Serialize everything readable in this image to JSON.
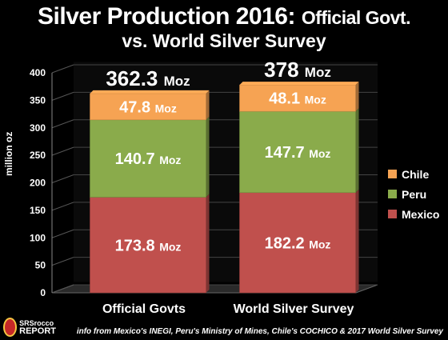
{
  "title": {
    "main": "Silver Production 2016:",
    "suffix": "Official Govt.",
    "line2": "vs. World Silver Survey"
  },
  "logo": {
    "badge": "SRSrocco",
    "line1": "SRSrocco",
    "line2": "REPORT"
  },
  "source": "info from Mexico's INEGI, Peru's Ministry of Mines, Chile's COCHICO & 2017 World Silver Survey",
  "chart_data": {
    "type": "bar",
    "stacked": true,
    "title": "Silver Production 2016: Official Govt. vs. World Silver Survey",
    "ylabel": "million oz",
    "xlabel": "",
    "ylim": [
      0,
      400
    ],
    "yticks": [
      0,
      50,
      100,
      150,
      200,
      250,
      300,
      350,
      400
    ],
    "categories": [
      "Official Govts",
      "World Silver Survey"
    ],
    "series": [
      {
        "name": "Mexico",
        "values": [
          173.8,
          182.2
        ],
        "labels": [
          "173.8",
          "182.2"
        ],
        "color": "#c0504d"
      },
      {
        "name": "Peru",
        "values": [
          140.7,
          147.7
        ],
        "labels": [
          "140.7",
          "147.7"
        ],
        "color": "#8aab4b"
      },
      {
        "name": "Chile",
        "values": [
          47.8,
          48.1
        ],
        "labels": [
          "47.8",
          "48.1"
        ],
        "color": "#f6a353"
      }
    ],
    "totals": [
      "362.3",
      "378"
    ],
    "unit": "Moz",
    "legend": {
      "position": "right",
      "order": [
        "Chile",
        "Peru",
        "Mexico"
      ]
    },
    "grid": true
  }
}
